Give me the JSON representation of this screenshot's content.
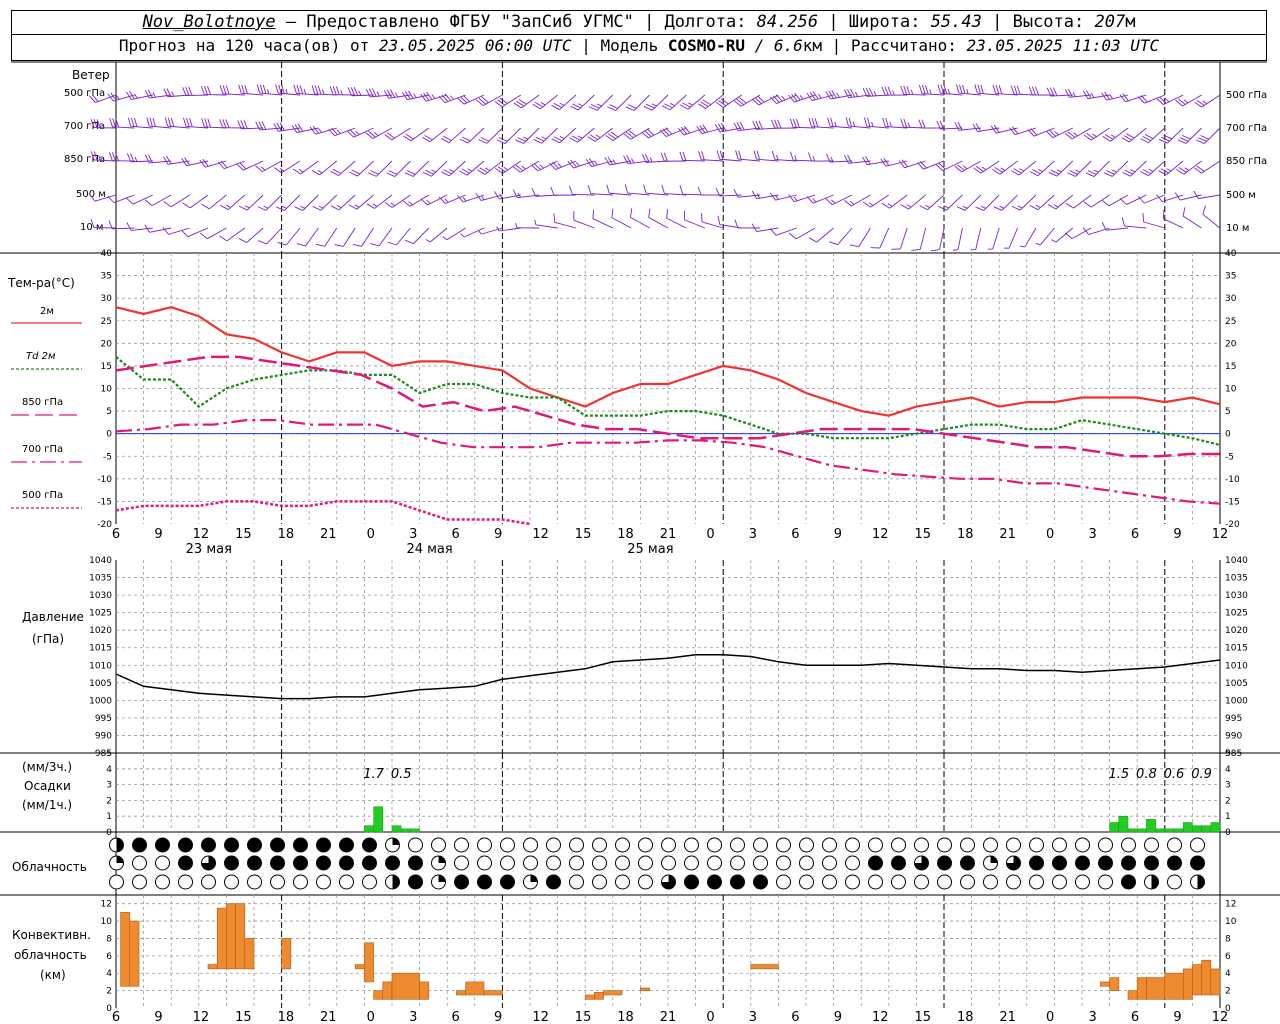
{
  "header": {
    "station": "Nov_Bolotnoye",
    "provider": " – Предоставлено ФГБУ \"ЗапСиб УГМС\" | Долгота: ",
    "lon": "84.256",
    "lat_label": " | Широта: ",
    "lat": "55.43",
    "alt_label": " | Высота: ",
    "alt": "207",
    "alt_unit": "м",
    "forecast_prefix": "Прогноз на 120 часа(ов) от ",
    "forecast_date": "23.05.2025 06:00 UTC",
    "model_label": "  | Модель ",
    "model": "COSMO-RU",
    "resolution": " / 6.6",
    "res_unit": "км",
    "calc_label": " | Рассчитано: ",
    "calc_date": "23.05.2025 11:03 UTC"
  },
  "labels": {
    "wind": "Ветер",
    "wind_levels": [
      "500 гПа",
      "700 гПа",
      "850 гПа",
      "500 м",
      "10 м"
    ],
    "temp": "Тем-ра(°C)",
    "temp_legend": [
      "2м",
      "Td 2м",
      "850 гПа",
      "700 гПа",
      "500 гПа"
    ],
    "pressure": "Давление",
    "pressure_unit": "(гПа)",
    "precip_unit1": "(мм/3ч.)",
    "precip": "Осадки",
    "precip_unit2": "(мм/1ч.)",
    "cloud": "Облачность",
    "conv1": "Конвективн.",
    "conv2": "облачность",
    "conv3": "(км)"
  },
  "colors": {
    "t2m": "#ee3333",
    "td2m": "#1a8a1a",
    "t850": "#e0187a",
    "t700": "#e0187a",
    "t500": "#e0187a",
    "wind": "#7a20cc",
    "precip": "#22cc22",
    "conv": "#ee8a30"
  },
  "chart_data": [
    {
      "type": "line",
      "name": "temperature",
      "ylim": [
        -20,
        40
      ],
      "x_hours": [
        0,
        3,
        6,
        9,
        12,
        15,
        18,
        21,
        24,
        27,
        30,
        33,
        36,
        39,
        42,
        45,
        48,
        51,
        54,
        57,
        60,
        63,
        66,
        69,
        72,
        75,
        78,
        81,
        84,
        87,
        90,
        93,
        96,
        99,
        102,
        105,
        108,
        111,
        114,
        117,
        120
      ],
      "x_tick_labels": [
        "6",
        "9",
        "12",
        "15",
        "18",
        "21",
        "0",
        "3",
        "6",
        "9",
        "12",
        "15",
        "18",
        "21",
        "0",
        "3",
        "6",
        "9",
        "12",
        "15",
        "18",
        "21",
        "0",
        "3",
        "6",
        "9",
        "12"
      ],
      "day_labels": [
        "23 мая",
        "24 мая",
        "25 мая"
      ],
      "series": [
        {
          "name": "2м",
          "values": [
            28,
            26.5,
            28,
            26,
            22,
            21,
            18,
            16,
            18,
            18,
            15,
            16,
            16,
            15,
            14,
            10,
            8,
            6,
            9,
            11,
            11,
            13,
            15,
            14,
            12,
            9,
            7,
            5,
            4,
            6,
            7,
            8,
            6,
            7,
            7,
            8,
            8,
            8,
            7,
            8,
            6.5
          ]
        },
        {
          "name": "Td 2м",
          "values": [
            17,
            12,
            12,
            6,
            10,
            12,
            13,
            14,
            14,
            13,
            13,
            9,
            11,
            11,
            9,
            8,
            8,
            4,
            4,
            4,
            5,
            5,
            4,
            2,
            0,
            0,
            -1,
            -1,
            -1,
            0,
            1,
            2,
            2,
            1,
            1,
            3,
            2,
            1,
            0,
            -1,
            -2.5
          ]
        },
        {
          "name": "850 гПа",
          "values": [
            14,
            15,
            16,
            17,
            17,
            16,
            15,
            14,
            13,
            10,
            6,
            7,
            5,
            6,
            4,
            2,
            1,
            1,
            0,
            -1,
            -1,
            -1,
            0,
            1,
            1,
            1,
            1,
            0,
            -1,
            -2,
            -3,
            -3,
            -4,
            -5,
            -5,
            -4.5,
            -4.5
          ]
        },
        {
          "name": "700 гПа",
          "values": [
            0.5,
            1,
            2,
            2,
            3,
            3,
            2,
            2,
            2,
            0,
            -2,
            -3,
            -3,
            -3,
            -2,
            -2,
            -2,
            -1.5,
            -1.5,
            -2,
            -3,
            -5,
            -7,
            -8,
            -9,
            -9.5,
            -10,
            -10,
            -11,
            -11,
            -12,
            -13,
            -14,
            -15,
            -15.5
          ]
        },
        {
          "name": "500 гПа",
          "values": [
            -17,
            -16,
            -16,
            -16,
            -15,
            -15,
            -16,
            -16,
            -15,
            -15,
            -15,
            -17,
            -19,
            -19,
            -19,
            -20
          ]
        }
      ]
    },
    {
      "type": "line",
      "name": "pressure",
      "ylim": [
        985,
        1040
      ],
      "series": [
        {
          "name": "",
          "values": [
            1007.5,
            1004,
            1003,
            1002,
            1001.5,
            1001,
            1000.5,
            1000.5,
            1001,
            1001,
            1002,
            1003,
            1003.5,
            1004,
            1006,
            1007,
            1008,
            1009,
            1011,
            1011.5,
            1012,
            1013,
            1013,
            1012.5,
            1011,
            1010,
            1010,
            1010,
            1010.5,
            1010,
            1009.5,
            1009,
            1009,
            1008.5,
            1008.5,
            1008,
            1008.5,
            1009,
            1009.5,
            1010.5,
            1011.5
          ]
        }
      ]
    },
    {
      "type": "bar",
      "name": "precipitation",
      "ylim": [
        0,
        5
      ],
      "labels_3h": [
        {
          "h": 28,
          "text": "1.7"
        },
        {
          "h": 31,
          "text": "0.5"
        },
        {
          "h": 109,
          "text": "1.5"
        },
        {
          "h": 112,
          "text": "0.8"
        },
        {
          "h": 115,
          "text": "0.6"
        },
        {
          "h": 118,
          "text": "0.9"
        }
      ],
      "bars_1h": [
        {
          "h": 27,
          "v": 0.4
        },
        {
          "h": 28,
          "v": 1.6
        },
        {
          "h": 30,
          "v": 0.4
        },
        {
          "h": 31,
          "v": 0.2
        },
        {
          "h": 32,
          "v": 0.2
        },
        {
          "h": 108,
          "v": 0.6
        },
        {
          "h": 109,
          "v": 1.0
        },
        {
          "h": 110,
          "v": 0.2
        },
        {
          "h": 111,
          "v": 0.2
        },
        {
          "h": 112,
          "v": 0.8
        },
        {
          "h": 113,
          "v": 0.2
        },
        {
          "h": 114,
          "v": 0.2
        },
        {
          "h": 115,
          "v": 0.2
        },
        {
          "h": 116,
          "v": 0.6
        },
        {
          "h": 117,
          "v": 0.4
        },
        {
          "h": 118,
          "v": 0.4
        },
        {
          "h": 119,
          "v": 0.6
        }
      ]
    },
    {
      "type": "bar",
      "name": "convective_cloud",
      "ylim": [
        0,
        13
      ],
      "bars": [
        {
          "h0": 0.5,
          "h1": 1.5,
          "lo": 2.5,
          "hi": 11
        },
        {
          "h0": 1.5,
          "h1": 2.5,
          "lo": 2.5,
          "hi": 10
        },
        {
          "h0": 10,
          "h1": 11,
          "lo": 4.5,
          "hi": 5
        },
        {
          "h0": 11,
          "h1": 12,
          "lo": 4.5,
          "hi": 11.5
        },
        {
          "h0": 12,
          "h1": 13,
          "lo": 4.5,
          "hi": 12
        },
        {
          "h0": 13,
          "h1": 14,
          "lo": 4.5,
          "hi": 12
        },
        {
          "h0": 14,
          "h1": 15,
          "lo": 4.5,
          "hi": 8
        },
        {
          "h0": 18,
          "h1": 19,
          "lo": 4.5,
          "hi": 8
        },
        {
          "h0": 26,
          "h1": 27,
          "lo": 4.5,
          "hi": 5
        },
        {
          "h0": 27,
          "h1": 28,
          "lo": 3,
          "hi": 7.5
        },
        {
          "h0": 28,
          "h1": 29,
          "lo": 1,
          "hi": 2
        },
        {
          "h0": 29,
          "h1": 30,
          "lo": 1,
          "hi": 3
        },
        {
          "h0": 30,
          "h1": 33,
          "lo": 1,
          "hi": 4
        },
        {
          "h0": 33,
          "h1": 34,
          "lo": 1,
          "hi": 3
        },
        {
          "h0": 37,
          "h1": 38,
          "lo": 1.5,
          "hi": 2
        },
        {
          "h0": 38,
          "h1": 40,
          "lo": 1.5,
          "hi": 3
        },
        {
          "h0": 40,
          "h1": 42,
          "lo": 1.5,
          "hi": 2
        },
        {
          "h0": 51,
          "h1": 52,
          "lo": 1,
          "hi": 1.5
        },
        {
          "h0": 52,
          "h1": 53,
          "lo": 1,
          "hi": 1.8
        },
        {
          "h0": 53,
          "h1": 55,
          "lo": 1.5,
          "hi": 2
        },
        {
          "h0": 57,
          "h1": 58,
          "lo": 2,
          "hi": 2.3
        },
        {
          "h0": 69,
          "h1": 72,
          "lo": 4.5,
          "hi": 5
        },
        {
          "h0": 107,
          "h1": 108,
          "lo": 2.5,
          "hi": 3
        },
        {
          "h0": 108,
          "h1": 109,
          "lo": 2,
          "hi": 3.5
        },
        {
          "h0": 110,
          "h1": 111,
          "lo": 1,
          "hi": 2
        },
        {
          "h0": 111,
          "h1": 112,
          "lo": 1,
          "hi": 3.5
        },
        {
          "h0": 112,
          "h1": 114,
          "lo": 1,
          "hi": 3.5
        },
        {
          "h0": 114,
          "h1": 116,
          "lo": 1,
          "hi": 4
        },
        {
          "h0": 116,
          "h1": 117,
          "lo": 1,
          "hi": 4.5
        },
        {
          "h0": 117,
          "h1": 118,
          "lo": 1.5,
          "hi": 5
        },
        {
          "h0": 118,
          "h1": 119,
          "lo": 1.5,
          "hi": 5.5
        },
        {
          "h0": 119,
          "h1": 120,
          "lo": 1.5,
          "hi": 4.5
        }
      ]
    },
    {
      "type": "table",
      "name": "cloudiness",
      "note": "three rows of cloud cover symbols, 0=clear,1=quarter,2=half,3=three-quarter,4=overcast",
      "rows": [
        [
          2,
          4,
          4,
          1,
          4,
          4,
          4,
          4,
          4,
          4,
          4,
          4,
          4,
          4,
          4,
          4,
          4,
          4,
          4,
          4,
          4,
          4,
          4,
          4,
          4,
          4,
          4,
          4,
          1,
          1,
          1,
          0,
          0,
          0,
          0,
          0,
          0,
          0,
          0,
          0,
          0,
          0,
          0,
          0,
          0,
          0,
          0,
          0,
          0,
          0,
          0,
          0,
          0,
          0,
          0,
          0,
          0,
          0,
          0,
          0,
          0,
          0,
          0,
          0,
          0,
          0,
          0,
          0,
          0,
          0,
          0,
          0,
          0,
          0,
          0,
          0,
          0,
          0,
          0,
          0,
          0,
          0,
          0,
          0,
          0,
          0,
          0,
          0,
          0,
          0,
          0,
          0,
          0,
          0,
          0,
          0,
          0,
          0,
          0,
          0,
          0,
          0,
          0,
          0,
          0,
          0,
          0,
          0,
          0,
          0,
          0,
          0,
          0,
          0,
          0,
          0,
          0,
          0,
          0,
          0
        ],
        [
          1,
          0,
          0,
          0,
          0,
          1,
          4,
          4,
          3,
          2,
          4,
          4,
          4,
          0,
          4,
          4,
          4,
          4,
          4,
          4,
          4,
          4,
          4,
          4,
          4,
          4,
          4,
          3,
          1,
          2,
          0,
          0,
          0,
          0,
          0,
          0,
          0,
          0,
          0,
          0,
          0,
          0,
          0,
          0,
          0,
          0,
          0,
          0,
          0,
          0,
          0,
          0,
          0,
          0,
          0,
          0,
          0,
          0,
          0,
          0,
          0,
          0,
          0,
          0,
          0,
          4,
          4,
          3,
          4,
          4,
          3,
          0,
          4,
          0,
          4,
          3,
          1,
          4,
          3,
          4,
          4,
          4,
          4,
          4,
          4,
          4,
          4,
          4,
          4,
          4,
          4,
          4,
          4,
          3,
          4,
          2
        ]
      ]
    }
  ]
}
